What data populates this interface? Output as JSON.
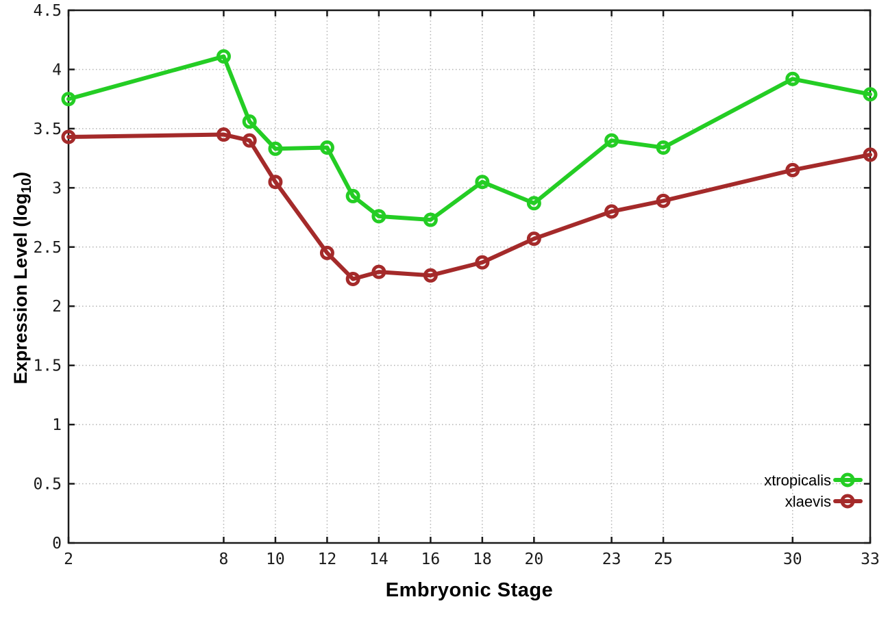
{
  "page": {
    "background": "#ffffff"
  },
  "chart_data": {
    "type": "line",
    "title": "",
    "xlabel": "Embryonic Stage",
    "ylabel": "Expression Level (log10)",
    "ylabel_parts": {
      "prefix": "Expression Level (log",
      "subscript": "10",
      "suffix": ")"
    },
    "xlim": [
      2,
      33
    ],
    "ylim": [
      0,
      4.5
    ],
    "grid": true,
    "grid_style": "dotted",
    "legend_position": "inside-bottom-right",
    "x_tick_values": [
      2,
      8,
      10,
      12,
      14,
      16,
      18,
      20,
      23,
      25,
      30,
      33
    ],
    "x_tick_labels": [
      "2",
      "8",
      "10",
      "12",
      "14",
      "16",
      "18",
      "20",
      "23",
      "25",
      "30",
      "33"
    ],
    "y_tick_values": [
      0,
      0.5,
      1,
      1.5,
      2,
      2.5,
      3,
      3.5,
      4,
      4.5
    ],
    "y_tick_labels": [
      "0",
      "0.5",
      "1",
      "1.5",
      "2",
      "2.5",
      "3",
      "3.5",
      "4",
      "4.5"
    ],
    "x": [
      2,
      8,
      9,
      10,
      12,
      13,
      14,
      16,
      18,
      20,
      23,
      25,
      30,
      33
    ],
    "series": [
      {
        "name": "xtropicalis",
        "color": "#24cd24",
        "marker": "open-circle",
        "values": [
          3.75,
          4.11,
          3.56,
          3.33,
          3.34,
          2.93,
          2.76,
          2.73,
          3.05,
          2.87,
          3.4,
          3.34,
          3.92,
          3.79
        ]
      },
      {
        "name": "xlaevis",
        "color": "#a42a2a",
        "marker": "open-circle",
        "values": [
          3.43,
          3.45,
          3.4,
          3.05,
          2.45,
          2.23,
          2.29,
          2.26,
          2.37,
          2.57,
          2.8,
          2.89,
          3.15,
          3.28
        ]
      }
    ],
    "style": {
      "grid_color": "#b3b3b3",
      "axis_color": "#1a1a1a",
      "tick_label_color": "#1a1a1a",
      "series_line_width": 6,
      "marker_radius": 8
    }
  }
}
